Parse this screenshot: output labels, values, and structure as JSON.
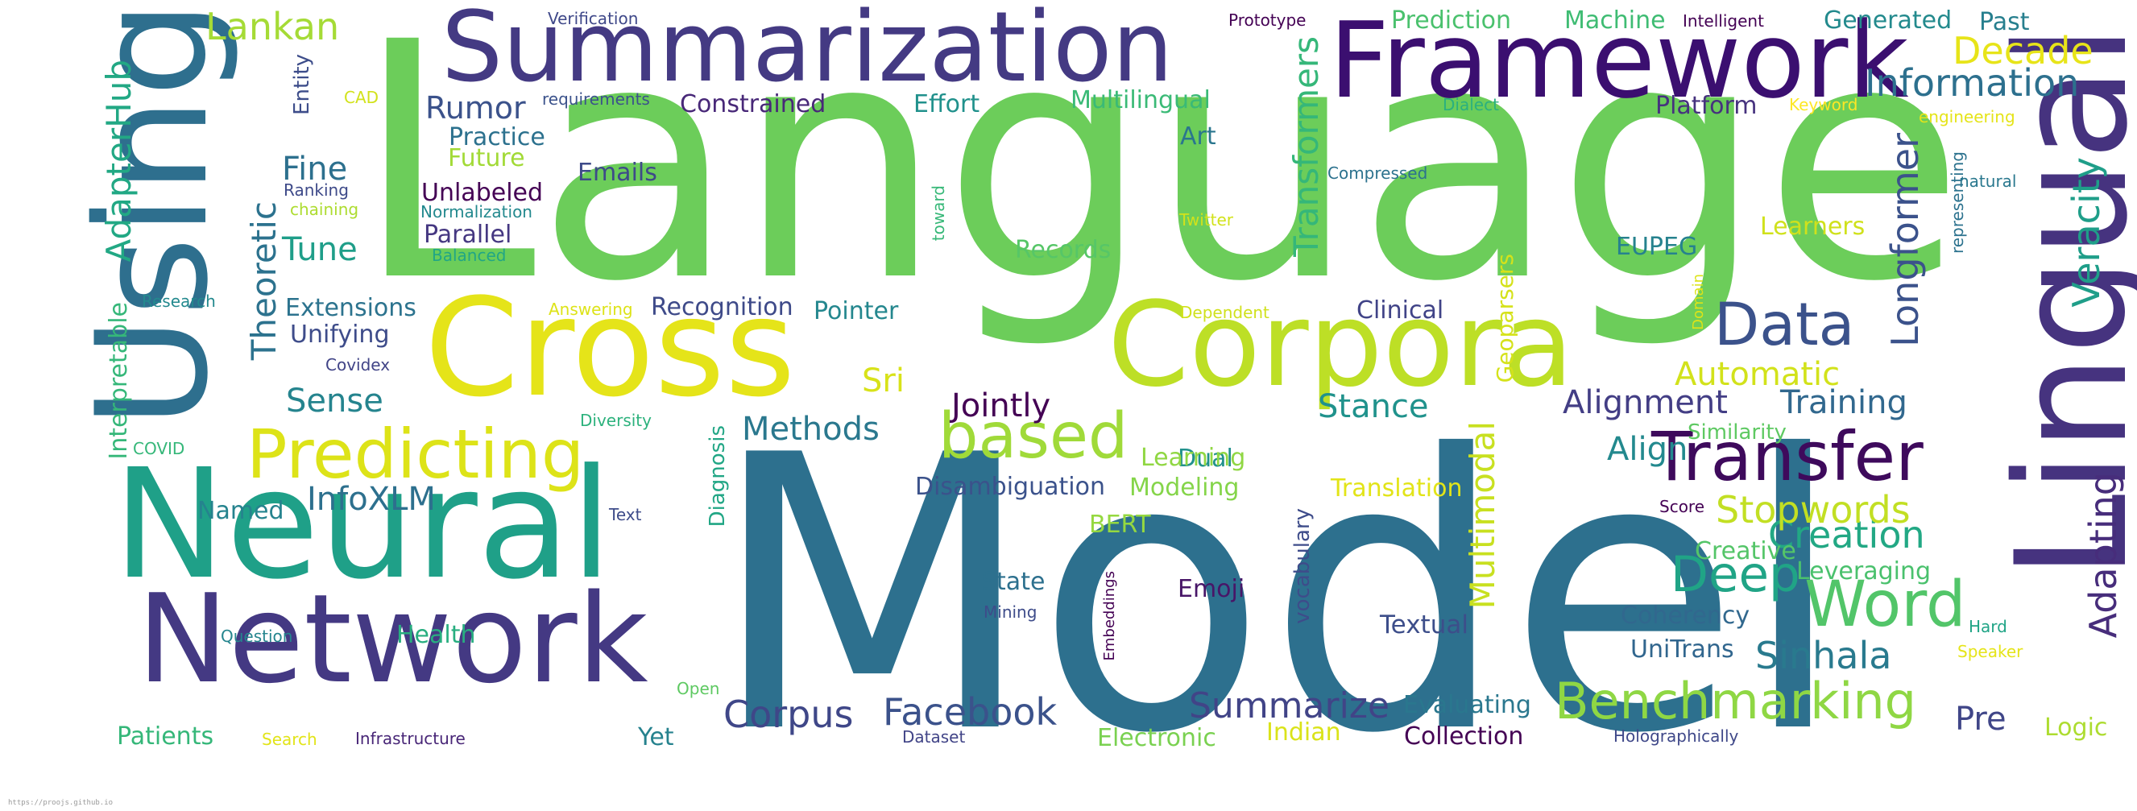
{
  "words": [
    {
      "text": "Language",
      "color": "#6ccd5a",
      "size": 1
    },
    {
      "text": "Model",
      "color": "#2d708e",
      "size": 1
    },
    {
      "text": "Lingual",
      "color": "#46337f",
      "size": 1
    },
    {
      "text": "Using",
      "color": "#2e6f8e",
      "size": 1
    },
    {
      "text": "Neural",
      "color": "#1fa088",
      "size": 1
    },
    {
      "text": "Network",
      "color": "#443983",
      "size": 1
    },
    {
      "text": "Cross",
      "color": "#e5e419",
      "size": 1
    },
    {
      "text": "Corpora",
      "color": "#bddf26",
      "size": 1
    },
    {
      "text": "Framework",
      "color": "#3b0f70",
      "size": 1
    },
    {
      "text": "Summarization",
      "color": "#443a83",
      "size": 1
    },
    {
      "text": "Transfer",
      "color": "#3e0a5c",
      "size": 1
    },
    {
      "text": "Predicting",
      "color": "#dde318",
      "size": 1
    },
    {
      "text": "based",
      "color": "#a0da39",
      "size": 1
    },
    {
      "text": "Word",
      "color": "#52c569",
      "size": 1
    },
    {
      "text": "Data",
      "color": "#3b528b",
      "size": 1
    },
    {
      "text": "Benchmarking",
      "color": "#8fd744",
      "size": 1
    },
    {
      "text": "Deep",
      "color": "#20a486",
      "size": 1
    },
    {
      "text": "Facebook",
      "color": "#3b528b",
      "size": 1
    },
    {
      "text": "Corpus",
      "color": "#3f4788",
      "size": 1
    },
    {
      "text": "Summarize",
      "color": "#414487",
      "size": 1
    },
    {
      "text": "Lankan",
      "color": "#a5db36",
      "size": 1
    },
    {
      "text": "Decade",
      "color": "#e7e419",
      "size": 1
    },
    {
      "text": "Information",
      "color": "#2d708e",
      "size": 1
    },
    {
      "text": "Creation",
      "color": "#22a884",
      "size": 1
    },
    {
      "text": "Stopwords",
      "color": "#c2df23",
      "size": 1
    },
    {
      "text": "Sinhala",
      "color": "#297a8e",
      "size": 1
    },
    {
      "text": "Veracity",
      "color": "#1f9e89",
      "size": 1
    },
    {
      "text": "Adapting",
      "color": "#472d7b",
      "size": 1
    },
    {
      "text": "Longformer",
      "color": "#3b528b",
      "size": 1
    },
    {
      "text": "Transformers",
      "color": "#35b779",
      "size": 1
    },
    {
      "text": "Multimodal",
      "color": "#c8e020",
      "size": 1
    },
    {
      "text": "AdapterHub",
      "color": "#22a884",
      "size": 1
    },
    {
      "text": "Theoretic",
      "color": "#2c728e",
      "size": 1
    },
    {
      "text": "Interpretable",
      "color": "#35b779",
      "size": 1
    },
    {
      "text": "Alignment",
      "color": "#433e85",
      "size": 1
    },
    {
      "text": "Training",
      "color": "#31688e",
      "size": 1
    },
    {
      "text": "Align",
      "color": "#23898e",
      "size": 1
    },
    {
      "text": "Automatic",
      "color": "#d2e21b",
      "size": 1
    },
    {
      "text": "Stance",
      "color": "#20928c",
      "size": 1
    },
    {
      "text": "Jointly",
      "color": "#440154",
      "size": 1
    },
    {
      "text": "Methods",
      "color": "#2a788e",
      "size": 1
    },
    {
      "text": "InfoXLM",
      "color": "#2d708e",
      "size": 1
    },
    {
      "text": "Rumor",
      "color": "#3b528b",
      "size": 1
    },
    {
      "text": "Fine",
      "color": "#2d708e",
      "size": 1
    },
    {
      "text": "Tune",
      "color": "#1f9e89",
      "size": 1
    },
    {
      "text": "Sense",
      "color": "#25848e",
      "size": 1
    },
    {
      "text": "Sri",
      "color": "#d8e219",
      "size": 1
    },
    {
      "text": "Pre",
      "color": "#404688",
      "size": 1
    },
    {
      "text": "Emoji",
      "color": "#481668",
      "size": 1
    },
    {
      "text": "Textual",
      "color": "#3d4e8a",
      "size": 1
    },
    {
      "text": "Prediction",
      "color": "#4ac16d",
      "size": 1
    },
    {
      "text": "Machine",
      "color": "#3fbc73",
      "size": 1
    },
    {
      "text": "Generated",
      "color": "#238a8d",
      "size": 1
    },
    {
      "text": "Past",
      "color": "#277f8e",
      "size": 1
    },
    {
      "text": "Constrained",
      "color": "#482878",
      "size": 1
    },
    {
      "text": "Effort",
      "color": "#21918c",
      "size": 1
    },
    {
      "text": "Multilingual",
      "color": "#3aba76",
      "size": 1
    },
    {
      "text": "Platform",
      "color": "#46327e",
      "size": 1
    },
    {
      "text": "Practice",
      "color": "#2c718e",
      "size": 1
    },
    {
      "text": "Future",
      "color": "#a2da37",
      "size": 1
    },
    {
      "text": "Art",
      "color": "#2a768e",
      "size": 1
    },
    {
      "text": "Emails",
      "color": "#3e4a89",
      "size": 1
    },
    {
      "text": "Unlabeled",
      "color": "#440154",
      "size": 1
    },
    {
      "text": "Parallel",
      "color": "#453781",
      "size": 1
    },
    {
      "text": "Records",
      "color": "#56c667",
      "size": 1
    },
    {
      "text": "Extensions",
      "color": "#2c738e",
      "size": 1
    },
    {
      "text": "Unifying",
      "color": "#3e4c8a",
      "size": 1
    },
    {
      "text": "Recognition",
      "color": "#3e4a89",
      "size": 1
    },
    {
      "text": "Pointer",
      "color": "#24878e",
      "size": 1
    },
    {
      "text": "Clinical",
      "color": "#404387",
      "size": 1
    },
    {
      "text": "EUPEG",
      "color": "#26828e",
      "size": 1
    },
    {
      "text": "Learners",
      "color": "#d0e11c",
      "size": 1
    },
    {
      "text": "Geoparsers",
      "color": "#d5e21a",
      "size": 1
    },
    {
      "text": "Dual",
      "color": "#21918c",
      "size": 1
    },
    {
      "text": "Learning",
      "color": "#90d743",
      "size": 1
    },
    {
      "text": "Modeling",
      "color": "#85d54a",
      "size": 1
    },
    {
      "text": "Translation",
      "color": "#e2e418",
      "size": 1
    },
    {
      "text": "Disambiguation",
      "color": "#3b528b",
      "size": 1
    },
    {
      "text": "Named",
      "color": "#25838e",
      "size": 1
    },
    {
      "text": "BERT",
      "color": "#95d840",
      "size": 1
    },
    {
      "text": "State",
      "color": "#2d708e",
      "size": 1
    },
    {
      "text": "Health",
      "color": "#28ae80",
      "size": 1
    },
    {
      "text": "Patients",
      "color": "#35b779",
      "size": 1
    },
    {
      "text": "Yet",
      "color": "#26828e",
      "size": 1
    },
    {
      "text": "Evaluating",
      "color": "#2a778e",
      "size": 1
    },
    {
      "text": "Collection",
      "color": "#440154",
      "size": 1
    },
    {
      "text": "Electronic",
      "color": "#7ad151",
      "size": 1
    },
    {
      "text": "Indian",
      "color": "#dae319",
      "size": 1
    },
    {
      "text": "Coherency",
      "color": "#31688e",
      "size": 1
    },
    {
      "text": "UniTrans",
      "color": "#31668e",
      "size": 1
    },
    {
      "text": "Leveraging",
      "color": "#4ac16d",
      "size": 1
    },
    {
      "text": "Creative",
      "color": "#54c568",
      "size": 1
    },
    {
      "text": "Logic",
      "color": "#addc30",
      "size": 1
    },
    {
      "text": "Similarity",
      "color": "#5ec962",
      "size": 1
    },
    {
      "text": "Entity",
      "color": "#3d4d8a",
      "size": 1
    },
    {
      "text": "Diagnosis",
      "color": "#21a685",
      "size": 1
    },
    {
      "text": "vocabulary",
      "color": "#3e4c8a",
      "size": 1
    },
    {
      "text": "Verification",
      "color": "#3f4889",
      "size": 1
    },
    {
      "text": "Prototype",
      "color": "#440154",
      "size": 1
    },
    {
      "text": "Intelligent",
      "color": "#440154",
      "size": 1
    },
    {
      "text": "requirements",
      "color": "#3b528b",
      "size": 1
    },
    {
      "text": "Dialect",
      "color": "#2ab07f",
      "size": 1
    },
    {
      "text": "Keyword",
      "color": "#fde725",
      "size": 1
    },
    {
      "text": "engineering",
      "color": "#e5e419",
      "size": 1
    },
    {
      "text": "natural",
      "color": "#2a788e",
      "size": 1
    },
    {
      "text": "CAD",
      "color": "#d2e21b",
      "size": 1
    },
    {
      "text": "Ranking",
      "color": "#3e4a89",
      "size": 1
    },
    {
      "text": "chaining",
      "color": "#addc30",
      "size": 1
    },
    {
      "text": "Normalization",
      "color": "#23898e",
      "size": 1
    },
    {
      "text": "Compressed",
      "color": "#2c728e",
      "size": 1
    },
    {
      "text": "Balanced",
      "color": "#21a685",
      "size": 1
    },
    {
      "text": "toward",
      "color": "#37b878",
      "size": 1
    },
    {
      "text": "Twitter",
      "color": "#d2e21b",
      "size": 1
    },
    {
      "text": "representing",
      "color": "#2c728e",
      "size": 1
    },
    {
      "text": "Domain",
      "color": "#dde318",
      "size": 1
    },
    {
      "text": "Research",
      "color": "#23898e",
      "size": 1
    },
    {
      "text": "Answering",
      "color": "#dde318",
      "size": 1
    },
    {
      "text": "Dependent",
      "color": "#d0e11c",
      "size": 1
    },
    {
      "text": "Covidex",
      "color": "#414487",
      "size": 1
    },
    {
      "text": "COVID",
      "color": "#35b779",
      "size": 1
    },
    {
      "text": "Diversity",
      "color": "#2db27d",
      "size": 1
    },
    {
      "text": "Text",
      "color": "#3e4c8a",
      "size": 1
    },
    {
      "text": "Score",
      "color": "#440154",
      "size": 1
    },
    {
      "text": "Mining",
      "color": "#3e4c8a",
      "size": 1
    },
    {
      "text": "Embeddings",
      "color": "#440154",
      "size": 1
    },
    {
      "text": "Question",
      "color": "#25858e",
      "size": 1
    },
    {
      "text": "Hard",
      "color": "#20a486",
      "size": 1
    },
    {
      "text": "Speaker",
      "color": "#e5e419",
      "size": 1
    },
    {
      "text": "Open",
      "color": "#5ec962",
      "size": 1
    },
    {
      "text": "Search",
      "color": "#e2e418",
      "size": 1
    },
    {
      "text": "Infrastructure",
      "color": "#482677",
      "size": 1
    },
    {
      "text": "Dataset",
      "color": "#414487",
      "size": 1
    },
    {
      "text": "Holographically",
      "color": "#3f4889",
      "size": 1
    }
  ],
  "footer": {
    "text": "https://proojs.github.io"
  }
}
